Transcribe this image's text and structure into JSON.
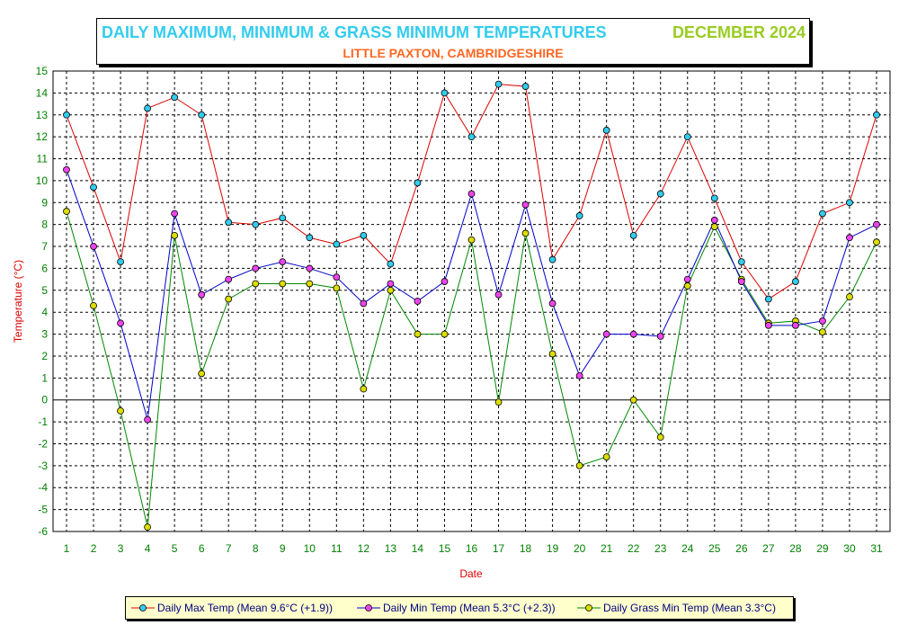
{
  "header": {
    "title": "DAILY MAXIMUM, MINIMUM & GRASS MINIMUM TEMPERATURES",
    "period": "DECEMBER 2024",
    "subtitle": "LITTLE PAXTON, CAMBRIDGESHIRE"
  },
  "legend": {
    "max_label": "Daily Max Temp (Mean 9.6°C (+1.9))",
    "min_label": "Daily Min Temp (Mean 5.3°C (+2.3))",
    "grass_label": "Daily Grass Min Temp (Mean 3.3°C)"
  },
  "colors": {
    "max_line": "#dd0000",
    "min_line": "#0000cc",
    "grass_line": "#008800",
    "max_marker": "#33ccee",
    "min_marker": "#ee44ee",
    "grass_marker": "#dddd00",
    "axis_text": "#008000",
    "label_text": "#dd0000"
  },
  "chart_data": {
    "type": "line",
    "xlabel": "Date",
    "ylabel": "Temperature (°C)",
    "ylim": [
      -6,
      15
    ],
    "yticks": [
      15,
      14,
      13,
      12,
      11,
      10,
      9,
      8,
      7,
      6,
      5,
      4,
      3,
      2,
      1,
      0,
      -1,
      -2,
      -3,
      -4,
      -5,
      -6
    ],
    "grid": true,
    "legend_position": "bottom",
    "x": [
      1,
      2,
      3,
      4,
      5,
      6,
      7,
      8,
      9,
      10,
      11,
      12,
      13,
      14,
      15,
      16,
      17,
      18,
      19,
      20,
      21,
      22,
      23,
      24,
      25,
      26,
      27,
      28,
      29,
      30,
      31
    ],
    "series": [
      {
        "name": "Daily Max Temp (Mean 9.6°C (+1.9))",
        "values": [
          13.0,
          9.7,
          6.3,
          13.3,
          13.8,
          13.0,
          8.1,
          8.0,
          8.3,
          7.4,
          7.1,
          7.5,
          6.2,
          9.9,
          14.0,
          12.0,
          14.4,
          14.3,
          6.4,
          8.4,
          12.3,
          7.5,
          9.4,
          12.0,
          9.2,
          6.3,
          4.6,
          5.4,
          8.5,
          9.0,
          13.0
        ]
      },
      {
        "name": "Daily Min Temp (Mean 5.3°C (+2.3))",
        "values": [
          10.5,
          7.0,
          3.5,
          -0.9,
          8.5,
          4.8,
          5.5,
          6.0,
          6.3,
          6.0,
          5.6,
          4.4,
          5.3,
          4.5,
          5.4,
          9.4,
          4.8,
          8.9,
          4.4,
          1.1,
          3.0,
          3.0,
          2.9,
          5.5,
          8.2,
          5.4,
          3.4,
          3.4,
          3.6,
          7.4,
          8.0
        ]
      },
      {
        "name": "Daily Grass Min Temp (Mean 3.3°C)",
        "values": [
          8.6,
          4.3,
          -0.5,
          -5.8,
          7.5,
          1.2,
          4.6,
          5.3,
          5.3,
          5.3,
          5.1,
          0.5,
          5.0,
          3.0,
          3.0,
          7.3,
          -0.1,
          7.6,
          2.1,
          -3.0,
          -2.6,
          0.0,
          -1.7,
          5.2,
          7.9,
          5.5,
          3.5,
          3.6,
          3.1,
          4.7,
          7.2
        ]
      }
    ]
  }
}
